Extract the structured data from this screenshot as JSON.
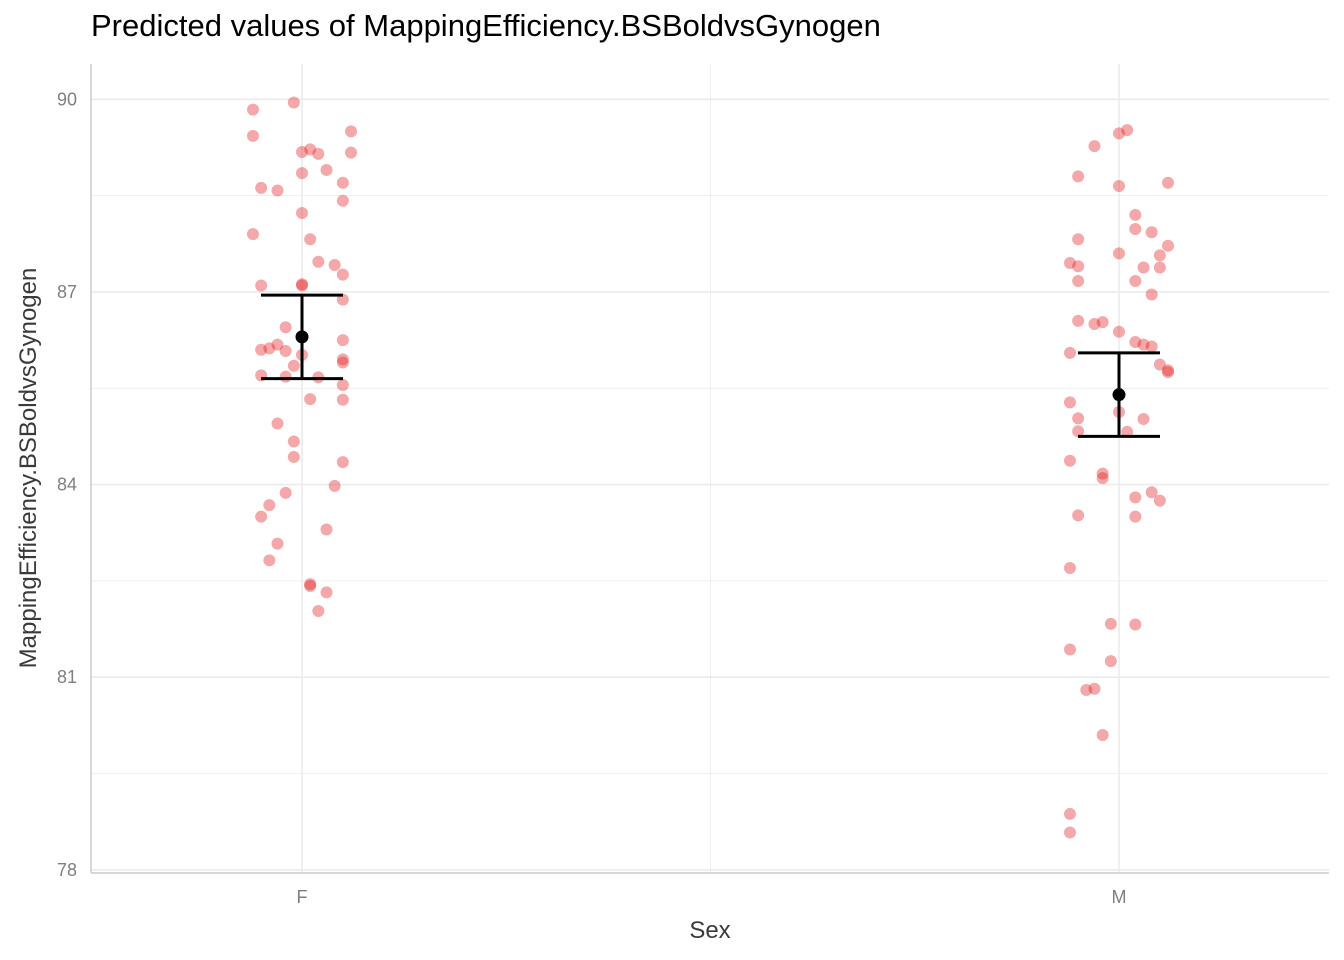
{
  "chart_data": {
    "type": "scatter",
    "title": "Predicted values of MappingEfficiency.BSBoldvsGynogen",
    "xlabel": "Sex",
    "ylabel": "MappingEfficiency.BSBoldvsGynogen",
    "categories": [
      "F",
      "M"
    ],
    "ylim": [
      77.95,
      90.55
    ],
    "yticks": [
      78,
      81,
      84,
      87,
      90
    ],
    "grid": true,
    "colors": {
      "points": "#e41a1c",
      "estimate": "#000000",
      "grid": "#ebebeb",
      "axis": "#cccccc"
    },
    "predictions": [
      {
        "category": "F",
        "estimate": 86.3,
        "ci_low": 85.65,
        "ci_high": 86.95
      },
      {
        "category": "M",
        "estimate": 85.4,
        "ci_low": 84.75,
        "ci_high": 86.05
      }
    ],
    "raw_points": [
      {
        "category": "F",
        "offset": -0.06,
        "value": 89.84
      },
      {
        "category": "F",
        "offset": -0.01,
        "value": 89.95
      },
      {
        "category": "F",
        "offset": -0.06,
        "value": 89.43
      },
      {
        "category": "F",
        "offset": 0.06,
        "value": 89.5
      },
      {
        "category": "F",
        "offset": 0.0,
        "value": 89.18
      },
      {
        "category": "F",
        "offset": 0.01,
        "value": 89.22
      },
      {
        "category": "F",
        "offset": 0.02,
        "value": 89.15
      },
      {
        "category": "F",
        "offset": 0.06,
        "value": 89.17
      },
      {
        "category": "F",
        "offset": 0.03,
        "value": 88.9
      },
      {
        "category": "F",
        "offset": 0.0,
        "value": 88.85
      },
      {
        "category": "F",
        "offset": 0.05,
        "value": 88.7
      },
      {
        "category": "F",
        "offset": -0.05,
        "value": 88.62
      },
      {
        "category": "F",
        "offset": -0.03,
        "value": 88.58
      },
      {
        "category": "F",
        "offset": 0.05,
        "value": 88.42
      },
      {
        "category": "F",
        "offset": 0.0,
        "value": 88.23
      },
      {
        "category": "F",
        "offset": -0.06,
        "value": 87.9
      },
      {
        "category": "F",
        "offset": 0.01,
        "value": 87.82
      },
      {
        "category": "F",
        "offset": 0.02,
        "value": 87.47
      },
      {
        "category": "F",
        "offset": 0.04,
        "value": 87.42
      },
      {
        "category": "F",
        "offset": 0.05,
        "value": 87.27
      },
      {
        "category": "F",
        "offset": -0.05,
        "value": 87.1
      },
      {
        "category": "F",
        "offset": 0.0,
        "value": 87.12
      },
      {
        "category": "F",
        "offset": 0.0,
        "value": 87.1
      },
      {
        "category": "F",
        "offset": 0.05,
        "value": 86.88
      },
      {
        "category": "F",
        "offset": -0.02,
        "value": 86.45
      },
      {
        "category": "F",
        "offset": 0.05,
        "value": 86.25
      },
      {
        "category": "F",
        "offset": -0.03,
        "value": 86.18
      },
      {
        "category": "F",
        "offset": -0.05,
        "value": 86.1
      },
      {
        "category": "F",
        "offset": -0.04,
        "value": 86.12
      },
      {
        "category": "F",
        "offset": -0.02,
        "value": 86.08
      },
      {
        "category": "F",
        "offset": 0.0,
        "value": 86.02
      },
      {
        "category": "F",
        "offset": 0.05,
        "value": 85.95
      },
      {
        "category": "F",
        "offset": 0.05,
        "value": 85.9
      },
      {
        "category": "F",
        "offset": -0.01,
        "value": 85.85
      },
      {
        "category": "F",
        "offset": -0.05,
        "value": 85.7
      },
      {
        "category": "F",
        "offset": -0.02,
        "value": 85.68
      },
      {
        "category": "F",
        "offset": 0.02,
        "value": 85.67
      },
      {
        "category": "F",
        "offset": 0.05,
        "value": 85.55
      },
      {
        "category": "F",
        "offset": 0.01,
        "value": 85.33
      },
      {
        "category": "F",
        "offset": 0.05,
        "value": 85.32
      },
      {
        "category": "F",
        "offset": -0.03,
        "value": 84.95
      },
      {
        "category": "F",
        "offset": -0.01,
        "value": 84.67
      },
      {
        "category": "F",
        "offset": -0.01,
        "value": 84.43
      },
      {
        "category": "F",
        "offset": 0.05,
        "value": 84.35
      },
      {
        "category": "F",
        "offset": 0.04,
        "value": 83.98
      },
      {
        "category": "F",
        "offset": -0.02,
        "value": 83.87
      },
      {
        "category": "F",
        "offset": -0.04,
        "value": 83.68
      },
      {
        "category": "F",
        "offset": -0.05,
        "value": 83.5
      },
      {
        "category": "F",
        "offset": 0.03,
        "value": 83.3
      },
      {
        "category": "F",
        "offset": -0.03,
        "value": 83.08
      },
      {
        "category": "F",
        "offset": -0.04,
        "value": 82.82
      },
      {
        "category": "F",
        "offset": 0.01,
        "value": 82.42
      },
      {
        "category": "F",
        "offset": 0.01,
        "value": 82.45
      },
      {
        "category": "F",
        "offset": 0.03,
        "value": 82.32
      },
      {
        "category": "F",
        "offset": 0.02,
        "value": 82.03
      },
      {
        "category": "M",
        "offset": 0.01,
        "value": 89.52
      },
      {
        "category": "M",
        "offset": 0.0,
        "value": 89.47
      },
      {
        "category": "M",
        "offset": -0.03,
        "value": 89.27
      },
      {
        "category": "M",
        "offset": -0.05,
        "value": 88.8
      },
      {
        "category": "M",
        "offset": 0.06,
        "value": 88.7
      },
      {
        "category": "M",
        "offset": 0.0,
        "value": 88.65
      },
      {
        "category": "M",
        "offset": 0.02,
        "value": 88.2
      },
      {
        "category": "M",
        "offset": 0.02,
        "value": 87.98
      },
      {
        "category": "M",
        "offset": 0.04,
        "value": 87.93
      },
      {
        "category": "M",
        "offset": -0.05,
        "value": 87.82
      },
      {
        "category": "M",
        "offset": 0.06,
        "value": 87.72
      },
      {
        "category": "M",
        "offset": 0.0,
        "value": 87.6
      },
      {
        "category": "M",
        "offset": 0.05,
        "value": 87.57
      },
      {
        "category": "M",
        "offset": -0.06,
        "value": 87.45
      },
      {
        "category": "M",
        "offset": -0.05,
        "value": 87.4
      },
      {
        "category": "M",
        "offset": 0.03,
        "value": 87.38
      },
      {
        "category": "M",
        "offset": 0.05,
        "value": 87.38
      },
      {
        "category": "M",
        "offset": -0.05,
        "value": 87.17
      },
      {
        "category": "M",
        "offset": 0.02,
        "value": 87.17
      },
      {
        "category": "M",
        "offset": 0.04,
        "value": 86.96
      },
      {
        "category": "M",
        "offset": -0.05,
        "value": 86.55
      },
      {
        "category": "M",
        "offset": -0.03,
        "value": 86.5
      },
      {
        "category": "M",
        "offset": -0.02,
        "value": 86.53
      },
      {
        "category": "M",
        "offset": 0.0,
        "value": 86.38
      },
      {
        "category": "M",
        "offset": 0.02,
        "value": 86.22
      },
      {
        "category": "M",
        "offset": 0.03,
        "value": 86.18
      },
      {
        "category": "M",
        "offset": 0.04,
        "value": 86.15
      },
      {
        "category": "M",
        "offset": -0.06,
        "value": 86.05
      },
      {
        "category": "M",
        "offset": 0.05,
        "value": 85.87
      },
      {
        "category": "M",
        "offset": 0.06,
        "value": 85.78
      },
      {
        "category": "M",
        "offset": 0.06,
        "value": 85.75
      },
      {
        "category": "M",
        "offset": -0.06,
        "value": 85.28
      },
      {
        "category": "M",
        "offset": 0.0,
        "value": 85.13
      },
      {
        "category": "M",
        "offset": -0.05,
        "value": 85.03
      },
      {
        "category": "M",
        "offset": 0.03,
        "value": 85.02
      },
      {
        "category": "M",
        "offset": -0.05,
        "value": 84.83
      },
      {
        "category": "M",
        "offset": 0.01,
        "value": 84.82
      },
      {
        "category": "M",
        "offset": -0.06,
        "value": 84.37
      },
      {
        "category": "M",
        "offset": -0.02,
        "value": 84.17
      },
      {
        "category": "M",
        "offset": -0.02,
        "value": 84.1
      },
      {
        "category": "M",
        "offset": 0.04,
        "value": 83.88
      },
      {
        "category": "M",
        "offset": 0.02,
        "value": 83.8
      },
      {
        "category": "M",
        "offset": 0.05,
        "value": 83.75
      },
      {
        "category": "M",
        "offset": -0.05,
        "value": 83.52
      },
      {
        "category": "M",
        "offset": 0.02,
        "value": 83.5
      },
      {
        "category": "M",
        "offset": -0.06,
        "value": 82.7
      },
      {
        "category": "M",
        "offset": -0.01,
        "value": 81.83
      },
      {
        "category": "M",
        "offset": 0.02,
        "value": 81.82
      },
      {
        "category": "M",
        "offset": -0.06,
        "value": 81.43
      },
      {
        "category": "M",
        "offset": -0.01,
        "value": 81.25
      },
      {
        "category": "M",
        "offset": -0.04,
        "value": 80.8
      },
      {
        "category": "M",
        "offset": -0.03,
        "value": 80.82
      },
      {
        "category": "M",
        "offset": -0.02,
        "value": 80.1
      },
      {
        "category": "M",
        "offset": -0.06,
        "value": 78.87
      },
      {
        "category": "M",
        "offset": -0.06,
        "value": 78.58
      }
    ]
  }
}
